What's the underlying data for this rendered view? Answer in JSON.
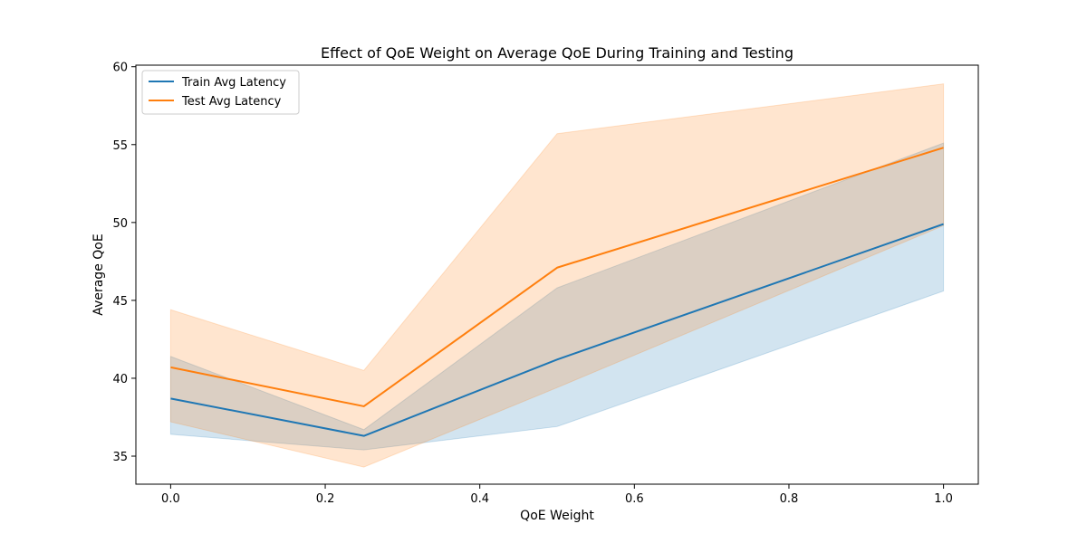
{
  "chart_data": {
    "type": "line",
    "title": "Effect of QoE Weight on Average QoE During Training and Testing",
    "xlabel": "QoE Weight",
    "ylabel": "Average QoE",
    "xlim": [
      -0.045,
      1.045
    ],
    "ylim": [
      33.2,
      60.1
    ],
    "xticks": [
      0.0,
      0.2,
      0.4,
      0.6,
      0.8,
      1.0
    ],
    "xtick_labels": [
      "0.0",
      "0.2",
      "0.4",
      "0.6",
      "0.8",
      "1.0"
    ],
    "yticks": [
      35,
      40,
      45,
      50,
      55,
      60
    ],
    "ytick_labels": [
      "35",
      "40",
      "45",
      "50",
      "55",
      "60"
    ],
    "grid": false,
    "legend_position": "top-left",
    "x": [
      0.0,
      0.25,
      0.5,
      1.0
    ],
    "series": [
      {
        "name": "Train Avg Latency",
        "color": "#1f77b4",
        "band_color": "#1f77b4",
        "values": [
          38.7,
          36.3,
          41.2,
          49.9
        ],
        "lower": [
          36.4,
          35.4,
          36.9,
          45.6
        ],
        "upper": [
          41.4,
          36.7,
          45.8,
          55.1
        ]
      },
      {
        "name": "Test Avg Latency",
        "color": "#ff7f0e",
        "band_color": "#ff7f0e",
        "values": [
          40.7,
          38.2,
          47.1,
          54.8
        ],
        "lower": [
          37.2,
          34.3,
          39.4,
          49.8
        ],
        "upper": [
          44.4,
          40.5,
          55.7,
          58.9
        ]
      }
    ]
  }
}
